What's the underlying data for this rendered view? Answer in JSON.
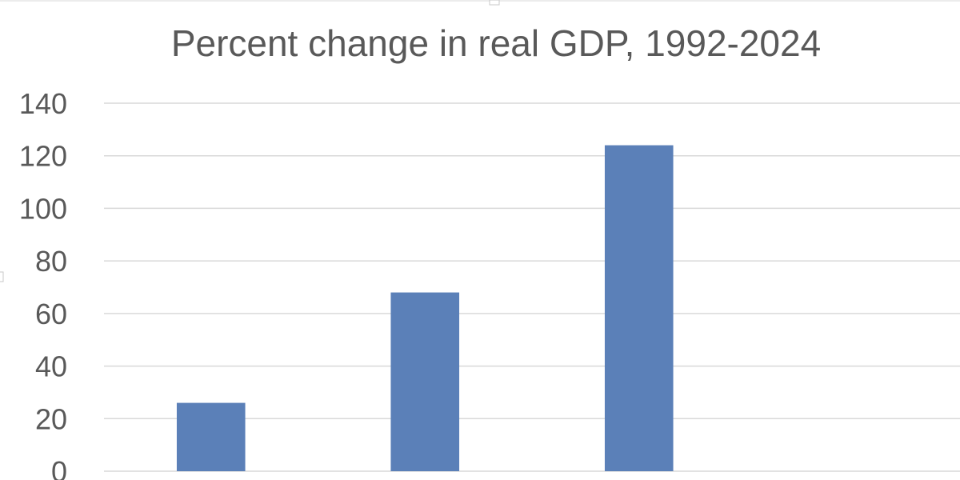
{
  "chart_data": {
    "type": "bar",
    "title": "Percent change in real GDP, 1992-2024",
    "xlabel": "",
    "ylabel": "",
    "categories": [
      "",
      "",
      "",
      ""
    ],
    "values": [
      26,
      68,
      124,
      null
    ],
    "ylim": [
      0,
      140
    ],
    "yticks": [
      "0",
      "20",
      "40",
      "60",
      "80",
      "100",
      "120",
      "140"
    ],
    "grid": true,
    "legend": "none",
    "bar_color": "#5b80b8"
  }
}
